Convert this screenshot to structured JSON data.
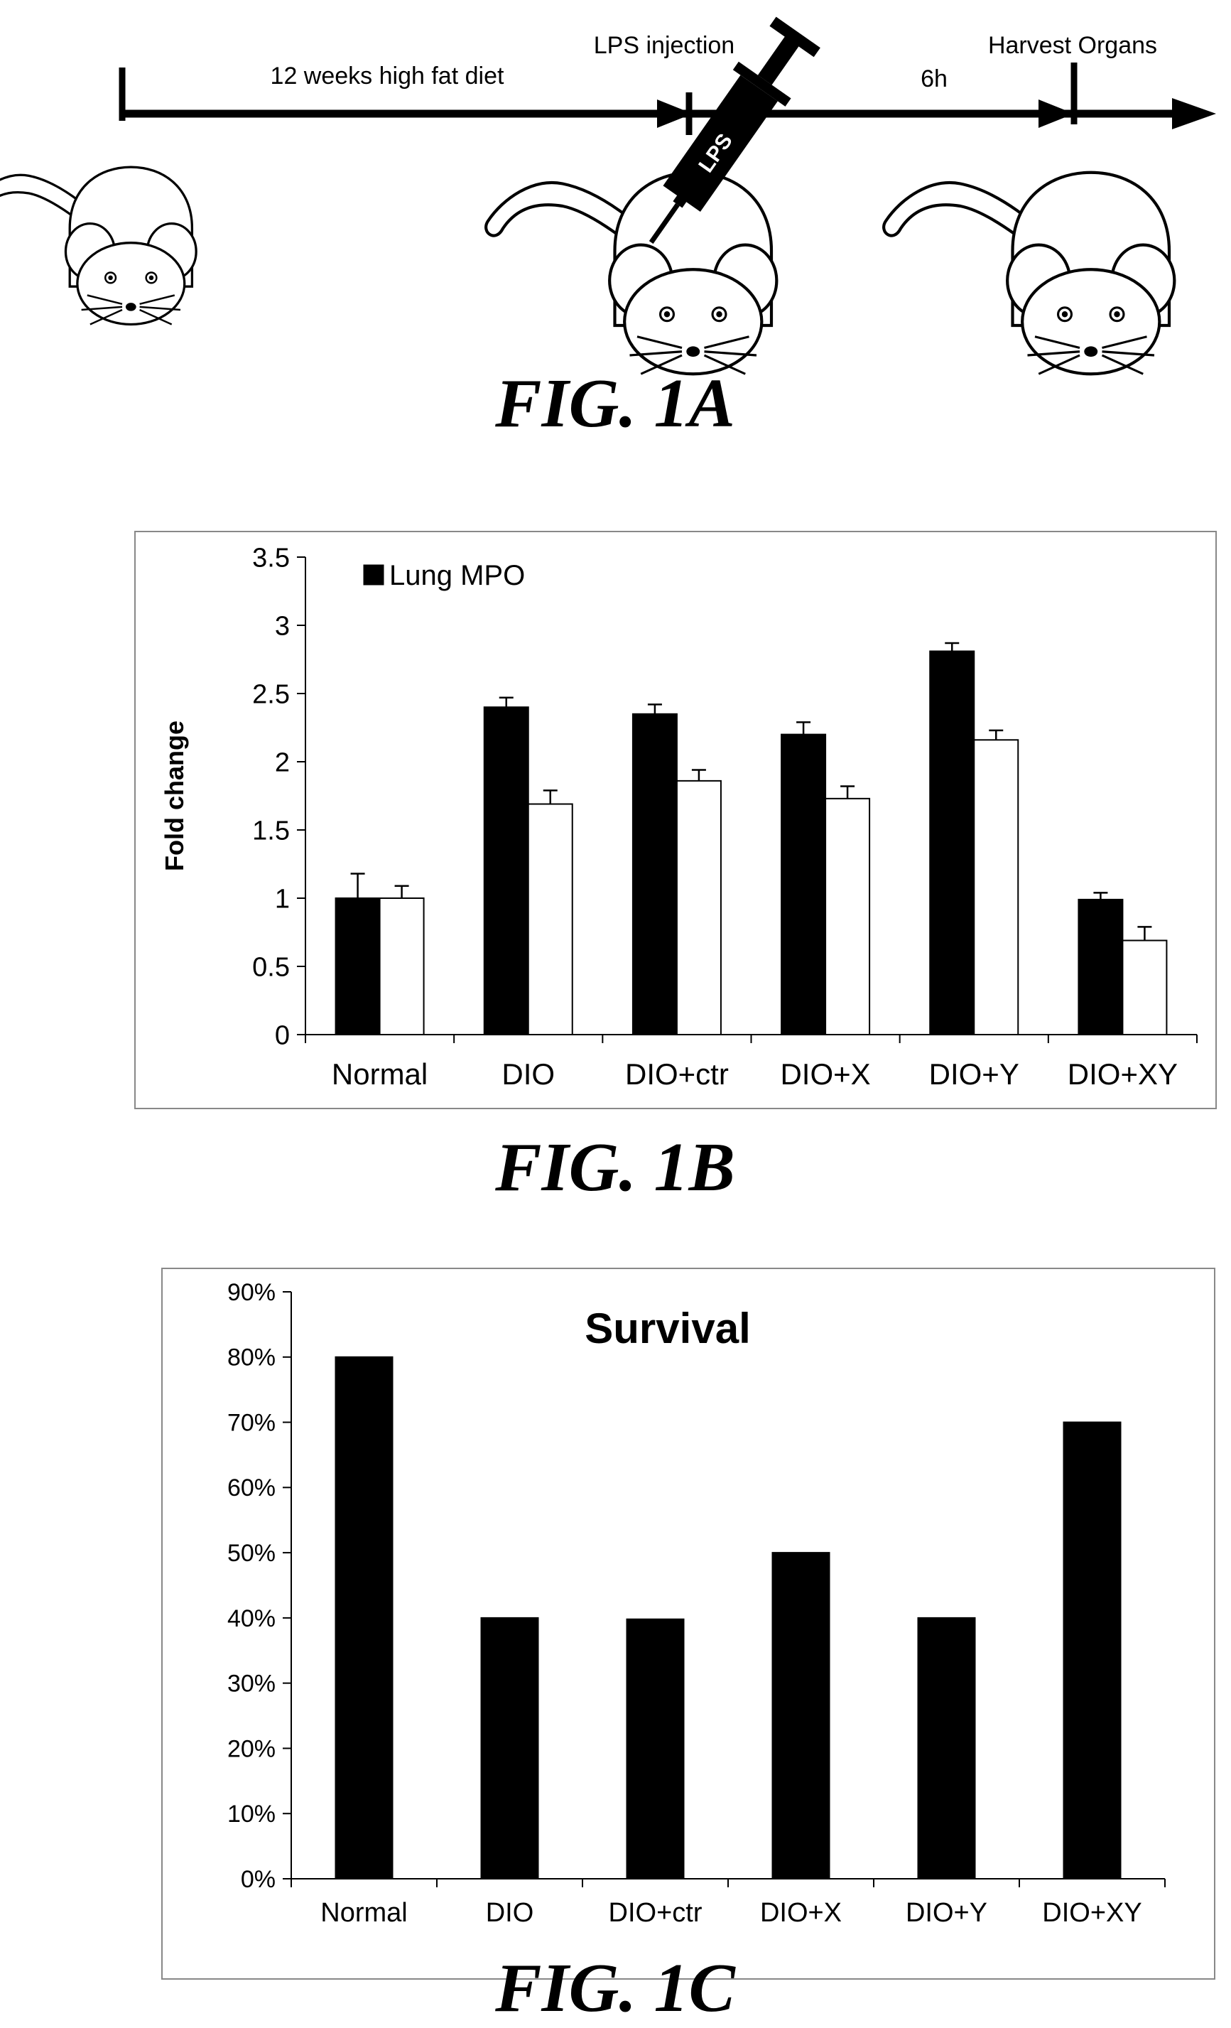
{
  "figure_a": {
    "label": "FIG. 1A",
    "steps": {
      "diet": "12 weeks high fat diet",
      "injection": "LPS injection",
      "delay": "6h",
      "harvest": "Harvest Organs",
      "syringe": "LPS"
    }
  },
  "figure_b": {
    "label": "FIG. 1B"
  },
  "figure_c": {
    "label": "FIG. 1C"
  },
  "chart_data": [
    {
      "type": "bar",
      "ylabel": "Fold change",
      "ylim": [
        0,
        3.5
      ],
      "yticks": [
        "0",
        "0.5",
        "1",
        "1.5",
        "2",
        "2.5",
        "3",
        "3.5"
      ],
      "categories": [
        "Normal",
        "DIO",
        "DIO+ctr",
        "DIO+X",
        "DIO+Y",
        "DIO+XY"
      ],
      "legend_position": "top-left",
      "series": [
        {
          "name": "Lung MPO",
          "color": "#000000",
          "values": [
            1.0,
            2.4,
            2.35,
            2.2,
            2.81,
            0.99
          ],
          "errors": [
            0.18,
            0.07,
            0.07,
            0.09,
            0.06,
            0.05
          ]
        },
        {
          "name": "",
          "color": "#ffffff",
          "values": [
            1.0,
            1.69,
            1.86,
            1.73,
            2.16,
            0.69
          ],
          "errors": [
            0.09,
            0.1,
            0.08,
            0.09,
            0.07,
            0.1
          ]
        }
      ]
    },
    {
      "type": "bar",
      "title": "Survival",
      "ylim": [
        0,
        90
      ],
      "yticks": [
        "0%",
        "10%",
        "20%",
        "30%",
        "40%",
        "50%",
        "60%",
        "70%",
        "80%",
        "90%"
      ],
      "categories": [
        "Normal",
        "DIO",
        "DIO+ctr",
        "DIO+X",
        "DIO+Y",
        "DIO+XY"
      ],
      "series": [
        {
          "name": "",
          "color": "#000000",
          "values": [
            80,
            40,
            39.8,
            50,
            40,
            70
          ]
        }
      ]
    }
  ]
}
